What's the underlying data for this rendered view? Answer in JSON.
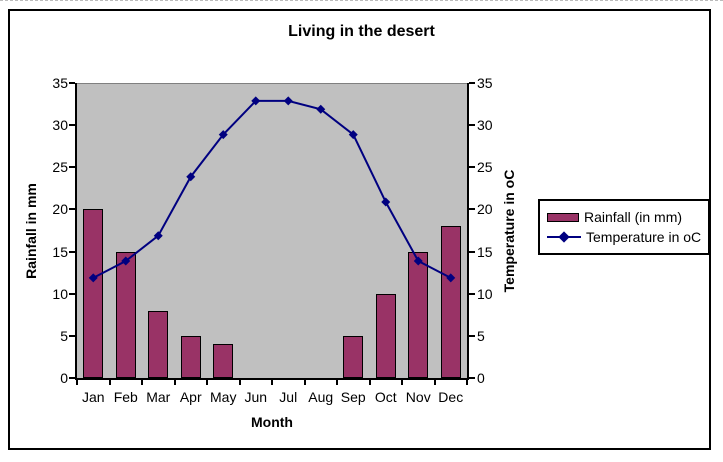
{
  "figure": {
    "background": "#FFFFFF",
    "border_color": "#000000",
    "plot_background": "#C0C0C0"
  },
  "chart_data": {
    "type": "combo-bar-line",
    "title": "Living in the desert",
    "categories": [
      "Jan",
      "Feb",
      "Mar",
      "Apr",
      "May",
      "Jun",
      "Jul",
      "Aug",
      "Sep",
      "Oct",
      "Nov",
      "Dec"
    ],
    "series": [
      {
        "name": "Rainfall (in mm)",
        "type": "bar",
        "axis": "left",
        "color": "#993366",
        "values": [
          20,
          15,
          8,
          5,
          4,
          0,
          0,
          0,
          5,
          10,
          15,
          18
        ]
      },
      {
        "name": "Temperature in oC",
        "type": "line",
        "axis": "right",
        "color": "#000080",
        "marker": "diamond",
        "values": [
          12,
          14,
          17,
          24,
          29,
          33,
          33,
          32,
          29,
          21,
          14,
          12
        ]
      }
    ],
    "xlabel": "Month",
    "ylabel_left": "Rainfall in mm",
    "ylabel_right": "Temperature in oC",
    "ylim": [
      0,
      35
    ],
    "yticks": [
      0,
      5,
      10,
      15,
      20,
      25,
      30,
      35
    ],
    "grid": false,
    "legend_position": "right"
  }
}
